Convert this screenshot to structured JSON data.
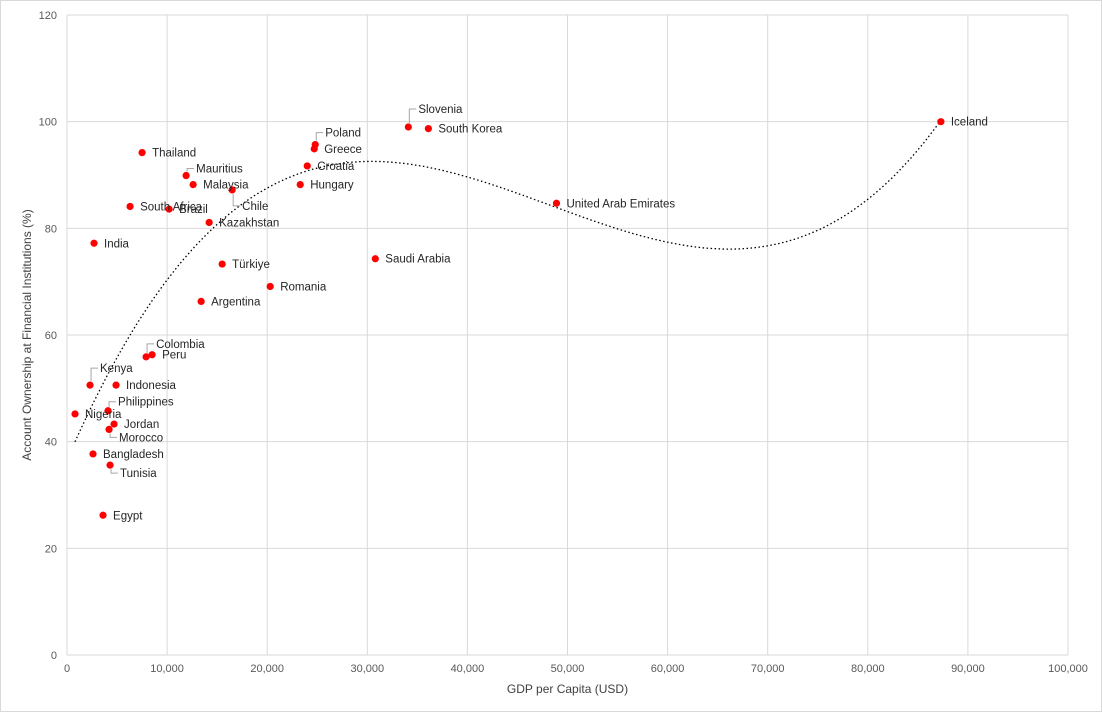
{
  "chart_data": {
    "type": "scatter",
    "xlabel": "GDP per Capita (USD)",
    "ylabel": "Account Ownership at Financial Institutions (%)",
    "xlim": [
      0,
      100000
    ],
    "ylim": [
      0,
      120
    ],
    "x_ticks": [
      0,
      10000,
      20000,
      30000,
      40000,
      50000,
      60000,
      70000,
      80000,
      90000,
      100000
    ],
    "y_ticks": [
      0,
      20,
      40,
      60,
      80,
      100,
      120
    ],
    "grid": true,
    "legend": "none",
    "marker_color": "#ff0000",
    "trendline": {
      "type": "polynomial",
      "style": "dotted",
      "color": "#000000"
    },
    "points": [
      {
        "label": "Iceland",
        "x": 87300,
        "y": 100
      },
      {
        "label": "Slovenia",
        "x": 34100,
        "y": 99
      },
      {
        "label": "South Korea",
        "x": 36100,
        "y": 98.7
      },
      {
        "label": "Poland",
        "x": 24800,
        "y": 95.7
      },
      {
        "label": "Greece",
        "x": 24700,
        "y": 94.9
      },
      {
        "label": "Thailand",
        "x": 7500,
        "y": 94.2
      },
      {
        "label": "Croatia",
        "x": 24000,
        "y": 91.7
      },
      {
        "label": "Mauritius",
        "x": 11900,
        "y": 89.9
      },
      {
        "label": "Malaysia",
        "x": 12600,
        "y": 88.2
      },
      {
        "label": "Hungary",
        "x": 23300,
        "y": 88.2
      },
      {
        "label": "Chile",
        "x": 16500,
        "y": 87.2
      },
      {
        "label": "United Arab Emirates",
        "x": 48900,
        "y": 84.7
      },
      {
        "label": "South Africa",
        "x": 6300,
        "y": 84.1
      },
      {
        "label": "Brazil",
        "x": 10200,
        "y": 83.6
      },
      {
        "label": "Kazakhstan",
        "x": 14200,
        "y": 81.1
      },
      {
        "label": "India",
        "x": 2700,
        "y": 77.2
      },
      {
        "label": "Saudi Arabia",
        "x": 30800,
        "y": 74.3
      },
      {
        "label": "Türkiye",
        "x": 15500,
        "y": 73.3
      },
      {
        "label": "Romania",
        "x": 20300,
        "y": 69.1
      },
      {
        "label": "Argentina",
        "x": 13400,
        "y": 66.3
      },
      {
        "label": "Colombia",
        "x": 7900,
        "y": 55.9
      },
      {
        "label": "Peru",
        "x": 8500,
        "y": 56.3
      },
      {
        "label": "Kenya",
        "x": 2300,
        "y": 50.6
      },
      {
        "label": "Indonesia",
        "x": 4900,
        "y": 50.6
      },
      {
        "label": "Philippines",
        "x": 4100,
        "y": 45.8
      },
      {
        "label": "Nigeria",
        "x": 800,
        "y": 45.2
      },
      {
        "label": "Jordan",
        "x": 4700,
        "y": 43.3
      },
      {
        "label": "Morocco",
        "x": 4200,
        "y": 42.3
      },
      {
        "label": "Bangladesh",
        "x": 2600,
        "y": 37.7
      },
      {
        "label": "Tunisia",
        "x": 4300,
        "y": 35.6
      },
      {
        "label": "Egypt",
        "x": 3600,
        "y": 26.2
      }
    ]
  }
}
